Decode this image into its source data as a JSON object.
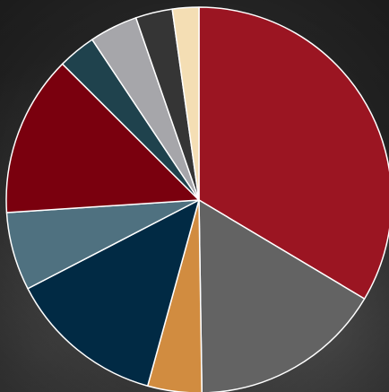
{
  "chart_data": {
    "type": "pie",
    "title": "",
    "start_angle_deg": 0,
    "direction": "clockwise",
    "slices": [
      {
        "value": 34.8,
        "color": "#9b1522"
      },
      {
        "value": 16.8,
        "color": "#636363"
      },
      {
        "value": 4.7,
        "color": "#d18c40"
      },
      {
        "value": 13.6,
        "color": "#012a44"
      },
      {
        "value": 6.8,
        "color": "#4f7180"
      },
      {
        "value": 14.0,
        "color": "#7a000e"
      },
      {
        "value": 3.3,
        "color": "#1f424d"
      },
      {
        "value": 4.2,
        "color": "#a6a6aa"
      },
      {
        "value": 3.2,
        "color": "#353535"
      },
      {
        "value": 2.3,
        "color": "#f4deb4"
      }
    ]
  }
}
